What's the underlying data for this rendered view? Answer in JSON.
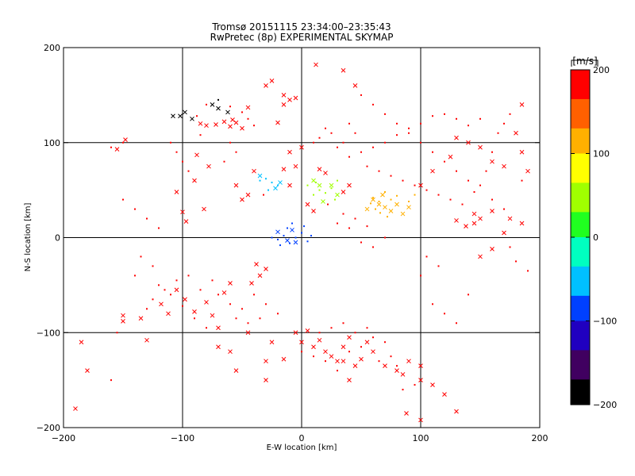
{
  "chart_data": {
    "type": "scatter",
    "title": "Tromsø 20151115 23:34:00–23:35:43",
    "subtitle": "RwPretec (8p) EXPERIMENTAL SKYMAP",
    "xlabel": "E-W location [km]",
    "ylabel": "N-S location [km]",
    "xlim": [
      -200,
      200
    ],
    "ylim": [
      -200,
      200
    ],
    "xticks": [
      -200,
      -100,
      0,
      100,
      200
    ],
    "yticks": [
      -200,
      -100,
      0,
      100,
      200
    ],
    "grid": true,
    "grid_lines": {
      "x": [
        -100,
        0,
        100
      ],
      "y": [
        -100,
        0,
        100
      ]
    },
    "colorbar": {
      "label": "[m/s]",
      "range": [
        -200,
        200
      ],
      "ticks": [
        200,
        100,
        0,
        -100,
        -200
      ],
      "colors": [
        "#000000",
        "#400060",
        "#2000c0",
        "#0040ff",
        "#00c0ff",
        "#00ffc0",
        "#20ff20",
        "#a0ff00",
        "#ffff00",
        "#ffb000",
        "#ff6000",
        "#ff0000"
      ]
    },
    "marker_styles": [
      "cross",
      "dot"
    ],
    "series": [
      {
        "marker": "cross",
        "points": [
          [
            -155,
            93
          ],
          [
            -148,
            103
          ],
          [
            -185,
            -110
          ],
          [
            -180,
            -140
          ],
          [
            -190,
            -180
          ],
          [
            -150,
            -88
          ],
          [
            -130,
            -108
          ],
          [
            -108,
            128
          ],
          [
            -102,
            128
          ],
          [
            -75,
            140
          ],
          [
            -70,
            136
          ],
          [
            -62,
            132
          ],
          [
            -58,
            124
          ],
          [
            -50,
            115
          ],
          [
            -30,
            160
          ],
          [
            -25,
            165
          ],
          [
            -15,
            150
          ],
          [
            -10,
            145
          ],
          [
            -45,
            137
          ],
          [
            -20,
            121
          ],
          [
            -85,
            120
          ],
          [
            -80,
            118
          ],
          [
            -72,
            119
          ],
          [
            -65,
            122
          ],
          [
            -60,
            117
          ],
          [
            -55,
            121
          ],
          [
            -88,
            87
          ],
          [
            -78,
            75
          ],
          [
            -90,
            60
          ],
          [
            -105,
            48
          ],
          [
            -100,
            27
          ],
          [
            -97,
            17
          ],
          [
            -82,
            30
          ],
          [
            -118,
            -70
          ],
          [
            -112,
            -80
          ],
          [
            -105,
            -55
          ],
          [
            -98,
            -65
          ],
          [
            -90,
            -78
          ],
          [
            -80,
            -68
          ],
          [
            -75,
            -82
          ],
          [
            -65,
            -58
          ],
          [
            -60,
            -48
          ],
          [
            -70,
            -95
          ],
          [
            -38,
            -28
          ],
          [
            -35,
            -40
          ],
          [
            -30,
            -33
          ],
          [
            -42,
            -48
          ],
          [
            -15,
            140
          ],
          [
            -5,
            147
          ],
          [
            35,
            176
          ],
          [
            45,
            160
          ],
          [
            12,
            182
          ],
          [
            -8,
            8
          ],
          [
            -12,
            -3
          ],
          [
            -20,
            6
          ],
          [
            -5,
            -5
          ],
          [
            10,
            28
          ],
          [
            5,
            35
          ],
          [
            18,
            38
          ],
          [
            30,
            45
          ],
          [
            35,
            48
          ],
          [
            25,
            55
          ],
          [
            40,
            55
          ],
          [
            15,
            55
          ],
          [
            10,
            60
          ],
          [
            0,
            95
          ],
          [
            -10,
            90
          ],
          [
            -5,
            75
          ],
          [
            -15,
            72
          ],
          [
            60,
            40
          ],
          [
            65,
            35
          ],
          [
            70,
            32
          ],
          [
            75,
            28
          ],
          [
            68,
            45
          ],
          [
            55,
            30
          ],
          [
            80,
            35
          ],
          [
            85,
            25
          ],
          [
            90,
            32
          ],
          [
            100,
            55
          ],
          [
            110,
            70
          ],
          [
            125,
            85
          ],
          [
            130,
            105
          ],
          [
            140,
            100
          ],
          [
            150,
            95
          ],
          [
            160,
            80
          ],
          [
            170,
            75
          ],
          [
            185,
            90
          ],
          [
            190,
            70
          ],
          [
            180,
            110
          ],
          [
            185,
            140
          ],
          [
            175,
            20
          ],
          [
            160,
            28
          ],
          [
            145,
            15
          ],
          [
            138,
            12
          ],
          [
            170,
            5
          ],
          [
            145,
            25
          ],
          [
            150,
            20
          ],
          [
            130,
            18
          ],
          [
            185,
            15
          ],
          [
            160,
            -12
          ],
          [
            150,
            -20
          ],
          [
            -5,
            -100
          ],
          [
            0,
            -110
          ],
          [
            5,
            -98
          ],
          [
            10,
            -115
          ],
          [
            15,
            -108
          ],
          [
            20,
            -120
          ],
          [
            25,
            -125
          ],
          [
            30,
            -130
          ],
          [
            35,
            -115
          ],
          [
            40,
            -105
          ],
          [
            45,
            -135
          ],
          [
            50,
            -128
          ],
          [
            55,
            -110
          ],
          [
            60,
            -120
          ],
          [
            70,
            -135
          ],
          [
            80,
            -140
          ],
          [
            85,
            -144
          ],
          [
            90,
            -130
          ],
          [
            100,
            -135
          ],
          [
            -25,
            -110
          ],
          [
            -15,
            -128
          ],
          [
            -30,
            -150
          ],
          [
            40,
            -150
          ],
          [
            35,
            -130
          ],
          [
            120,
            -165
          ],
          [
            130,
            -183
          ],
          [
            100,
            -192
          ],
          [
            -30,
            -130
          ],
          [
            -70,
            -115
          ],
          [
            -60,
            -120
          ],
          [
            -45,
            -100
          ],
          [
            -55,
            -140
          ],
          [
            -150,
            -82
          ],
          [
            -135,
            -85
          ],
          [
            -92,
            125
          ],
          [
            -98,
            132
          ],
          [
            -40,
            70
          ],
          [
            -35,
            65
          ],
          [
            -50,
            40
          ],
          [
            -55,
            55
          ],
          [
            -45,
            45
          ],
          [
            -18,
            58
          ],
          [
            -10,
            55
          ],
          [
            -22,
            52
          ],
          [
            15,
            72
          ],
          [
            20,
            68
          ],
          [
            100,
            -150
          ],
          [
            110,
            -155
          ],
          [
            88,
            -185
          ]
        ]
      },
      {
        "marker": "dot",
        "points": [
          [
            -20,
            -2
          ],
          [
            -15,
            2
          ],
          [
            -10,
            -6
          ],
          [
            -5,
            0
          ],
          [
            0,
            5
          ],
          [
            5,
            -4
          ],
          [
            -25,
            0
          ],
          [
            -18,
            -8
          ],
          [
            -12,
            10
          ],
          [
            -8,
            15
          ],
          [
            2,
            12
          ],
          [
            8,
            2
          ],
          [
            15,
            50
          ],
          [
            20,
            47
          ],
          [
            25,
            52
          ],
          [
            10,
            45
          ],
          [
            5,
            55
          ],
          [
            12,
            58
          ],
          [
            30,
            60
          ],
          [
            28,
            40
          ],
          [
            22,
            35
          ],
          [
            60,
            42
          ],
          [
            65,
            38
          ],
          [
            70,
            48
          ],
          [
            75,
            40
          ],
          [
            62,
            30
          ],
          [
            58,
            36
          ],
          [
            66,
            26
          ],
          [
            72,
            22
          ],
          [
            80,
            44
          ],
          [
            90,
            38
          ],
          [
            95,
            45
          ],
          [
            -35,
            60
          ],
          [
            -30,
            62
          ],
          [
            -25,
            58
          ],
          [
            -20,
            55
          ],
          [
            -28,
            50
          ],
          [
            -32,
            45
          ],
          [
            50,
            150
          ],
          [
            60,
            140
          ],
          [
            70,
            130
          ],
          [
            80,
            120
          ],
          [
            90,
            110
          ],
          [
            100,
            100
          ],
          [
            110,
            90
          ],
          [
            120,
            80
          ],
          [
            130,
            70
          ],
          [
            140,
            60
          ],
          [
            150,
            55
          ],
          [
            155,
            70
          ],
          [
            160,
            90
          ],
          [
            165,
            110
          ],
          [
            170,
            120
          ],
          [
            175,
            130
          ],
          [
            150,
            125
          ],
          [
            140,
            118
          ],
          [
            130,
            125
          ],
          [
            120,
            130
          ],
          [
            110,
            128
          ],
          [
            100,
            120
          ],
          [
            90,
            115
          ],
          [
            80,
            108
          ],
          [
            70,
            100
          ],
          [
            60,
            95
          ],
          [
            50,
            90
          ],
          [
            45,
            110
          ],
          [
            40,
            120
          ],
          [
            35,
            100
          ],
          [
            30,
            95
          ],
          [
            25,
            110
          ],
          [
            20,
            115
          ],
          [
            15,
            105
          ],
          [
            10,
            100
          ],
          [
            40,
            85
          ],
          [
            55,
            75
          ],
          [
            65,
            70
          ],
          [
            75,
            65
          ],
          [
            85,
            60
          ],
          [
            95,
            55
          ],
          [
            105,
            50
          ],
          [
            115,
            45
          ],
          [
            125,
            40
          ],
          [
            135,
            35
          ],
          [
            145,
            48
          ],
          [
            160,
            40
          ],
          [
            -80,
            140
          ],
          [
            -70,
            145
          ],
          [
            -60,
            138
          ],
          [
            -50,
            132
          ],
          [
            -45,
            125
          ],
          [
            -40,
            118
          ],
          [
            -85,
            108
          ],
          [
            -88,
            128
          ],
          [
            -120,
            -50
          ],
          [
            -110,
            -60
          ],
          [
            -100,
            -72
          ],
          [
            -90,
            -85
          ],
          [
            -80,
            -95
          ],
          [
            -70,
            -60
          ],
          [
            -60,
            -70
          ],
          [
            -55,
            -85
          ],
          [
            -130,
            -75
          ],
          [
            -125,
            -65
          ],
          [
            -115,
            -55
          ],
          [
            -105,
            -45
          ],
          [
            -95,
            -40
          ],
          [
            -85,
            -55
          ],
          [
            -75,
            -45
          ],
          [
            0,
            -120
          ],
          [
            10,
            -125
          ],
          [
            20,
            -130
          ],
          [
            30,
            -140
          ],
          [
            40,
            -120
          ],
          [
            50,
            -115
          ],
          [
            60,
            -105
          ],
          [
            70,
            -110
          ],
          [
            75,
            -125
          ],
          [
            80,
            -135
          ],
          [
            15,
            -100
          ],
          [
            25,
            -95
          ],
          [
            35,
            -90
          ],
          [
            45,
            -100
          ],
          [
            55,
            -95
          ],
          [
            65,
            -130
          ],
          [
            85,
            -160
          ],
          [
            95,
            -155
          ],
          [
            40,
            10
          ],
          [
            45,
            20
          ],
          [
            35,
            25
          ],
          [
            30,
            15
          ],
          [
            50,
            -5
          ],
          [
            60,
            -10
          ],
          [
            70,
            0
          ],
          [
            55,
            12
          ],
          [
            -110,
            100
          ],
          [
            -105,
            90
          ],
          [
            -100,
            80
          ],
          [
            -95,
            70
          ],
          [
            -60,
            100
          ],
          [
            -55,
            90
          ],
          [
            -65,
            80
          ],
          [
            -160,
            95
          ],
          [
            -150,
            100
          ],
          [
            -155,
            -100
          ],
          [
            -160,
            -150
          ],
          [
            180,
            -25
          ],
          [
            175,
            -10
          ],
          [
            190,
            -35
          ],
          [
            170,
            30
          ],
          [
            185,
            60
          ],
          [
            120,
            -80
          ],
          [
            130,
            -90
          ],
          [
            110,
            -70
          ],
          [
            140,
            -60
          ],
          [
            100,
            -40
          ],
          [
            115,
            -30
          ],
          [
            105,
            -20
          ],
          [
            -150,
            40
          ],
          [
            -140,
            30
          ],
          [
            -130,
            20
          ],
          [
            -120,
            10
          ],
          [
            -135,
            -20
          ],
          [
            -125,
            -30
          ],
          [
            -140,
            -40
          ],
          [
            -40,
            -60
          ],
          [
            -30,
            -70
          ],
          [
            -20,
            -80
          ],
          [
            -50,
            -75
          ],
          [
            -45,
            -90
          ],
          [
            -35,
            -85
          ]
        ]
      }
    ]
  }
}
